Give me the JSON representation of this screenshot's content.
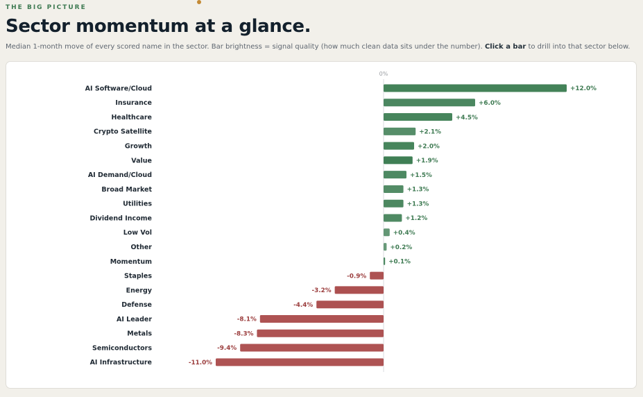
{
  "header": {
    "eyebrow": "THE BIG PICTURE",
    "title": "Sector momentum at a glance.",
    "subtitle_prefix": "Median 1-month move of every scored name in the sector. Bar brightness = signal quality (how much clean data sits under the number).",
    "subtitle_action": "Click a bar",
    "subtitle_suffix": "to drill into that sector below."
  },
  "colors": {
    "positive": "#3f7f55",
    "negative": "#a84747",
    "positive_text": "#3e7a52",
    "negative_text": "#9b3d3d",
    "axis": "#d9dbdf"
  },
  "chart_data": {
    "type": "bar",
    "orientation": "horizontal",
    "zero_label": "0%",
    "grid": false,
    "categories": [
      "AI Software/Cloud",
      "Insurance",
      "Healthcare",
      "Crypto Satellite",
      "Growth",
      "Value",
      "AI Demand/Cloud",
      "Broad Market",
      "Utilities",
      "Dividend Income",
      "Low Vol",
      "Other",
      "Momentum",
      "Staples",
      "Energy",
      "Defense",
      "AI Leader",
      "Metals",
      "Semiconductors",
      "AI Infrastructure"
    ],
    "values": [
      12.0,
      6.0,
      4.5,
      2.1,
      2.0,
      1.9,
      1.5,
      1.3,
      1.3,
      1.2,
      0.4,
      0.2,
      0.1,
      -0.9,
      -3.2,
      -4.4,
      -8.1,
      -8.3,
      -9.4,
      -11.0
    ],
    "value_labels": [
      "+12.0%",
      "+6.0%",
      "+4.5%",
      "+2.1%",
      "+2.0%",
      "+1.9%",
      "+1.5%",
      "+1.3%",
      "+1.3%",
      "+1.2%",
      "+0.4%",
      "+0.2%",
      "+0.1%",
      "-0.9%",
      "-3.2%",
      "-4.4%",
      "-8.1%",
      "-8.3%",
      "-9.4%",
      "-11.0%"
    ],
    "signal_quality": [
      0.95,
      0.85,
      0.9,
      0.72,
      0.9,
      1.0,
      0.82,
      0.76,
      0.84,
      0.8,
      0.55,
      0.5,
      0.82,
      0.86,
      0.88,
      0.86,
      0.84,
      0.84,
      0.84,
      0.84
    ],
    "xlim": [
      -11.0,
      12.0
    ]
  }
}
